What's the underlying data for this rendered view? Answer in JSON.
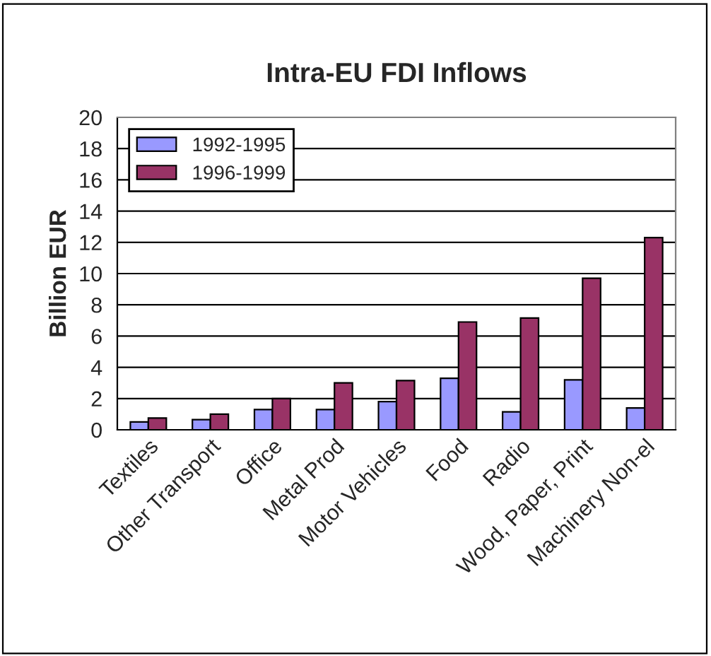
{
  "chart_data": {
    "type": "bar",
    "title": "Intra-EU FDI Inflows",
    "ylabel": "Billion EUR",
    "categories": [
      "Textiles",
      "Other Transport",
      "Office",
      "Metal Prod",
      "Motor Vehicles",
      "Food",
      "Radio",
      "Wood, Paper, Print",
      "Machinery Non-el"
    ],
    "series": [
      {
        "name": "1992-1995",
        "color": "#9999ff",
        "values": [
          0.5,
          0.65,
          1.3,
          1.3,
          1.8,
          3.3,
          1.15,
          3.2,
          1.4
        ]
      },
      {
        "name": "1996-1999",
        "color": "#993366",
        "values": [
          0.75,
          1.0,
          2.0,
          3.0,
          3.15,
          6.9,
          7.15,
          9.7,
          12.3
        ]
      }
    ],
    "ylim": [
      0,
      20
    ],
    "yticks": [
      0,
      2,
      4,
      6,
      8,
      10,
      12,
      14,
      16,
      18,
      20
    ],
    "grid": "y",
    "legend": "top left"
  }
}
